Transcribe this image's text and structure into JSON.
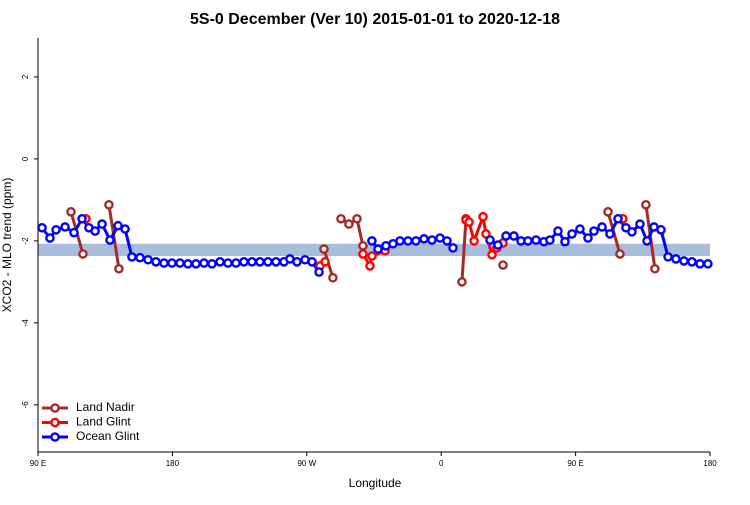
{
  "chart_data": {
    "type": "line",
    "title": "5S-0 December (Ver 10)   2015-01-01 to 2020-12-18",
    "x_label": "Longitude",
    "y_label": "XCO2 - MLO trend (ppm)",
    "xlim": [
      90,
      540
    ],
    "xticks": [
      {
        "value": 90,
        "label": "90 E"
      },
      180,
      {
        "value": 270,
        "label": "90 W"
      },
      {
        "value": 360,
        "label": "0"
      },
      {
        "value": 450,
        "label": "90 E"
      },
      {
        "value": 540,
        "label": "180"
      }
    ],
    "ylim": [
      -7.15,
      2.95
    ],
    "yticks": [
      2,
      0,
      -2,
      -4,
      -6
    ],
    "band": [
      -2.37,
      -2.07
    ],
    "band_color": "#a7bddb",
    "legend": "bottom-left",
    "series": [
      {
        "name": "Land Nadir",
        "color": "#a52a2a",
        "x": [
          112.1,
          120.1,
          null,
          137.5,
          144.2,
          null,
          281.5,
          287.5,
          null,
          292.9,
          298.2,
          303.6,
          307.6,
          null,
          373.9,
          376.6,
          null,
          401.4,
          null,
          471.7,
          479.7,
          null,
          497.1,
          503.1
        ],
        "values": [
          -1.29,
          -2.32,
          null,
          -1.12,
          -2.68,
          null,
          -2.2,
          -2.9,
          null,
          -1.46,
          -1.59,
          -1.46,
          -2.12,
          null,
          -3.0,
          -1.46,
          null,
          -2.59,
          null,
          -1.29,
          -2.32,
          null,
          -1.12,
          -2.68
        ]
      },
      {
        "name": "Land Glint",
        "color": "#ff0000",
        "x": [
          122.1,
          null,
          278.8,
          282.2,
          null,
          307.6,
          312.3,
          313.6,
          322.4,
          null,
          376.6,
          378.6,
          382.0,
          388.0,
          390.0,
          394.0,
          397.3,
          401.4,
          null,
          481.7
        ],
        "values": [
          -1.46,
          null,
          -2.61,
          -2.51,
          null,
          -2.32,
          -2.61,
          -2.37,
          -2.24,
          null,
          -1.49,
          -1.54,
          -2.0,
          -1.41,
          -1.83,
          -2.34,
          -2.17,
          -2.05,
          null,
          -1.46
        ]
      },
      {
        "name": "Ocean Glint",
        "color": "#0000ff",
        "x": [
          92.7,
          98.0,
          102.1,
          108.1,
          114.1,
          119.5,
          124.1,
          128.2,
          132.9,
          138.2,
          143.6,
          148.3,
          152.9,
          158.3,
          163.7,
          169.0,
          174.4,
          179.7,
          185.1,
          190.4,
          195.8,
          201.2,
          206.5,
          211.9,
          217.2,
          222.6,
          227.9,
          233.3,
          238.6,
          244.0,
          249.4,
          254.7,
          258.7,
          263.4,
          268.8,
          273.5,
          278.2,
          null,
          313.6,
          317.7,
          323.0,
          327.7,
          332.4,
          337.8,
          343.1,
          348.5,
          353.8,
          359.2,
          363.9,
          367.9,
          null,
          392.7,
          398.0,
          403.4,
          408.7,
          413.4,
          418.1,
          423.5,
          428.8,
          432.8,
          438.2,
          442.9,
          447.6,
          452.9,
          458.3,
          462.3,
          467.7,
          473.0,
          478.4,
          483.7,
          487.7,
          493.1,
          497.8,
          502.5,
          507.2,
          511.9,
          517.2,
          522.6,
          527.9,
          533.3,
          538.6
        ],
        "values": [
          -1.68,
          -1.93,
          -1.73,
          -1.66,
          -1.8,
          -1.46,
          -1.68,
          -1.76,
          -1.59,
          -1.98,
          -1.63,
          -1.71,
          -2.39,
          -2.41,
          -2.46,
          -2.51,
          -2.54,
          -2.54,
          -2.54,
          -2.56,
          -2.56,
          -2.54,
          -2.56,
          -2.51,
          -2.54,
          -2.54,
          -2.51,
          -2.51,
          -2.51,
          -2.51,
          -2.51,
          -2.51,
          -2.44,
          -2.51,
          -2.46,
          -2.51,
          -2.76,
          null,
          -2.0,
          -2.2,
          -2.12,
          -2.07,
          -2.0,
          -2.0,
          -2.0,
          -1.95,
          -1.98,
          -1.93,
          -2.0,
          -2.17,
          null,
          -1.98,
          -2.1,
          -1.88,
          -1.88,
          -2.0,
          -2.0,
          -1.98,
          -2.02,
          -1.98,
          -1.76,
          -2.02,
          -1.83,
          -1.71,
          -1.93,
          -1.76,
          -1.66,
          -1.83,
          -1.46,
          -1.68,
          -1.78,
          -1.59,
          -2.0,
          -1.66,
          -1.73,
          -2.39,
          -2.44,
          -2.49,
          -2.51,
          -2.56,
          -2.56
        ]
      }
    ]
  }
}
